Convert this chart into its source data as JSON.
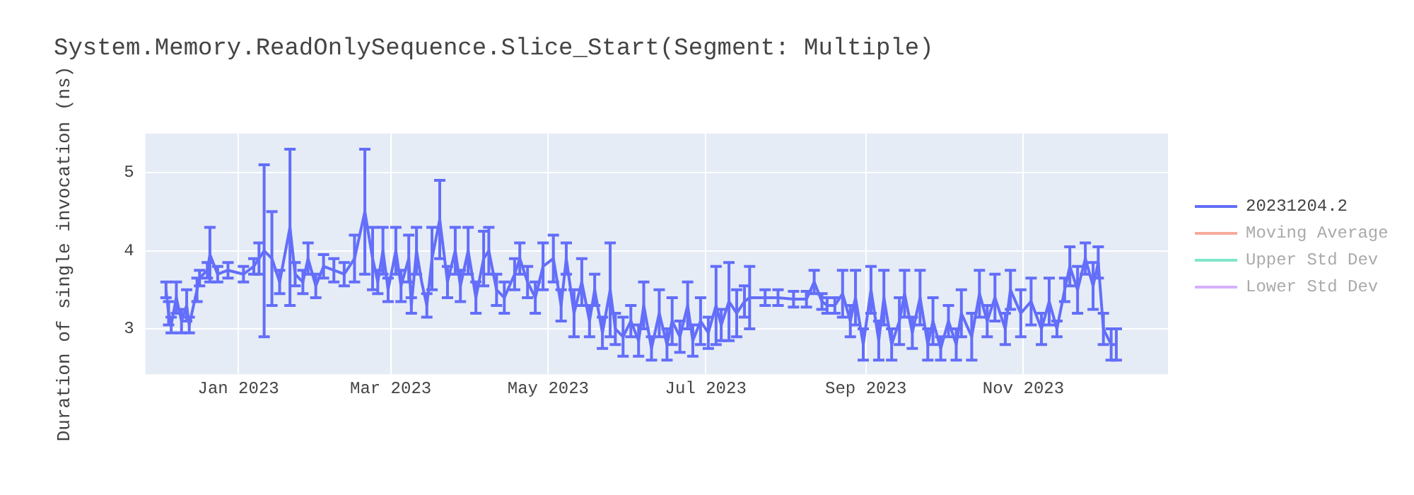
{
  "chart_data": {
    "type": "line",
    "title": "System.Memory.ReadOnlySequence.Slice_Start(Segment: Multiple)",
    "ylabel": "Duration of single invocation (ns)",
    "xlim": [
      "2022-11-26",
      "2023-12-27"
    ],
    "xticks": [
      {
        "value": "2023-01-01",
        "label": "Jan 2023"
      },
      {
        "value": "2023-03-01",
        "label": "Mar 2023"
      },
      {
        "value": "2023-05-01",
        "label": "May 2023"
      },
      {
        "value": "2023-07-01",
        "label": "Jul 2023"
      },
      {
        "value": "2023-09-01",
        "label": "Sep 2023"
      },
      {
        "value": "2023-11-01",
        "label": "Nov 2023"
      }
    ],
    "ylim": [
      2.42,
      5.5
    ],
    "yticks": [
      3,
      4,
      5
    ],
    "grid": true,
    "legend": "top right",
    "marker": "none",
    "line_style": "solid",
    "series": [
      {
        "name": "20231204.2",
        "color": "#636efa",
        "x": [
          "2022-12-04",
          "2022-12-05",
          "2022-12-06",
          "2022-12-08",
          "2022-12-10",
          "2022-12-12",
          "2022-12-13",
          "2022-12-16",
          "2022-12-17",
          "2022-12-20",
          "2022-12-21",
          "2022-12-24",
          "2022-12-28",
          "2023-01-03",
          "2023-01-07",
          "2023-01-09",
          "2023-01-11",
          "2023-01-14",
          "2023-01-17",
          "2023-01-21",
          "2023-01-23",
          "2023-01-26",
          "2023-01-28",
          "2023-01-31",
          "2023-02-03",
          "2023-02-07",
          "2023-02-11",
          "2023-02-15",
          "2023-02-19",
          "2023-02-22",
          "2023-02-24",
          "2023-02-26",
          "2023-02-28",
          "2023-03-03",
          "2023-03-05",
          "2023-03-08",
          "2023-03-09",
          "2023-03-11",
          "2023-03-13",
          "2023-03-15",
          "2023-03-17",
          "2023-03-20",
          "2023-03-23",
          "2023-03-26",
          "2023-03-28",
          "2023-03-31",
          "2023-04-03",
          "2023-04-06",
          "2023-04-08",
          "2023-04-11",
          "2023-04-14",
          "2023-04-18",
          "2023-04-20",
          "2023-04-23",
          "2023-04-26",
          "2023-04-29",
          "2023-05-03",
          "2023-05-06",
          "2023-05-08",
          "2023-05-11",
          "2023-05-14",
          "2023-05-17",
          "2023-05-19",
          "2023-05-22",
          "2023-05-25",
          "2023-05-27",
          "2023-05-30",
          "2023-06-02",
          "2023-06-05",
          "2023-06-07",
          "2023-06-10",
          "2023-06-13",
          "2023-06-16",
          "2023-06-18",
          "2023-06-21",
          "2023-06-24",
          "2023-06-26",
          "2023-06-29",
          "2023-07-02",
          "2023-07-05",
          "2023-07-07",
          "2023-07-10",
          "2023-07-13",
          "2023-07-16",
          "2023-07-18",
          "2023-07-24",
          "2023-07-29",
          "2023-08-04",
          "2023-08-09",
          "2023-08-12",
          "2023-08-15",
          "2023-08-17",
          "2023-08-20",
          "2023-08-23",
          "2023-08-26",
          "2023-08-28",
          "2023-08-31",
          "2023-09-03",
          "2023-09-06",
          "2023-09-08",
          "2023-09-11",
          "2023-09-14",
          "2023-09-16",
          "2023-09-19",
          "2023-09-22",
          "2023-09-25",
          "2023-09-27",
          "2023-09-30",
          "2023-10-03",
          "2023-10-06",
          "2023-10-08",
          "2023-10-12",
          "2023-10-15",
          "2023-10-18",
          "2023-10-21",
          "2023-10-25",
          "2023-10-27",
          "2023-10-31",
          "2023-11-04",
          "2023-11-08",
          "2023-11-11",
          "2023-11-14",
          "2023-11-17",
          "2023-11-19",
          "2023-11-22",
          "2023-11-25",
          "2023-11-28",
          "2023-11-30",
          "2023-12-02",
          "2023-12-05",
          "2023-12-07"
        ],
        "values": [
          3.5,
          3.2,
          3.05,
          3.4,
          3.1,
          3.3,
          3.05,
          3.5,
          3.65,
          3.75,
          3.95,
          3.7,
          3.75,
          3.7,
          3.8,
          3.9,
          4.0,
          3.9,
          3.6,
          4.3,
          3.7,
          3.6,
          3.9,
          3.55,
          3.8,
          3.75,
          3.7,
          3.9,
          4.5,
          3.9,
          3.6,
          4.0,
          3.5,
          4.0,
          3.55,
          3.9,
          3.3,
          4.0,
          3.6,
          3.3,
          3.9,
          4.4,
          3.6,
          4.0,
          3.55,
          4.0,
          3.4,
          3.9,
          4.0,
          3.5,
          3.4,
          3.7,
          3.9,
          3.6,
          3.4,
          3.8,
          3.9,
          3.3,
          3.9,
          3.2,
          3.6,
          3.1,
          3.5,
          2.95,
          3.5,
          3.0,
          2.9,
          3.1,
          2.85,
          3.3,
          2.75,
          3.2,
          2.8,
          3.1,
          2.9,
          3.3,
          2.85,
          3.1,
          2.95,
          3.3,
          3.05,
          3.35,
          3.2,
          3.35,
          3.4,
          3.4,
          3.4,
          3.38,
          3.38,
          3.6,
          3.35,
          3.3,
          3.3,
          3.45,
          3.1,
          3.4,
          2.8,
          3.5,
          2.85,
          3.4,
          2.8,
          3.1,
          3.45,
          2.95,
          3.4,
          2.8,
          3.1,
          2.75,
          3.1,
          2.8,
          3.2,
          2.9,
          3.45,
          3.1,
          3.4,
          3.0,
          3.5,
          3.2,
          3.35,
          3.0,
          3.35,
          3.0,
          3.5,
          3.8,
          3.5,
          3.9,
          3.55,
          3.85,
          3.0,
          2.8,
          2.8
        ],
        "errors": [
          0.1,
          0.15,
          0.1,
          0.2,
          0.15,
          0.2,
          0.1,
          0.15,
          0.1,
          0.1,
          0.35,
          0.1,
          0.1,
          0.1,
          0.1,
          0.2,
          1.1,
          0.6,
          0.15,
          1.0,
          0.15,
          0.15,
          0.2,
          0.15,
          0.15,
          0.15,
          0.15,
          0.3,
          0.8,
          0.4,
          0.15,
          0.3,
          0.15,
          0.3,
          0.2,
          0.3,
          0.1,
          0.3,
          null,
          0.15,
          0.4,
          0.5,
          0.2,
          0.3,
          0.2,
          0.3,
          0.2,
          0.35,
          0.3,
          0.2,
          0.2,
          0.2,
          0.2,
          0.2,
          0.2,
          0.3,
          0.3,
          0.2,
          0.2,
          0.3,
          0.3,
          0.2,
          0.2,
          0.2,
          0.6,
          0.2,
          0.25,
          0.2,
          0.2,
          0.3,
          0.15,
          0.3,
          0.2,
          0.3,
          0.2,
          0.3,
          0.2,
          0.3,
          0.2,
          0.5,
          0.2,
          0.5,
          0.3,
          0.2,
          0.4,
          0.1,
          0.1,
          0.1,
          0.1,
          0.15,
          0.1,
          0.1,
          0.1,
          0.3,
          0.2,
          0.35,
          0.2,
          0.3,
          0.25,
          0.35,
          0.2,
          0.3,
          0.3,
          0.2,
          0.35,
          0.2,
          0.3,
          0.15,
          0.2,
          0.2,
          0.3,
          0.3,
          0.3,
          0.2,
          0.3,
          0.2,
          0.25,
          0.3,
          0.3,
          0.2,
          0.3,
          0.1,
          0.15,
          0.25,
          0.3,
          0.2,
          0.3,
          0.2,
          0.2,
          0.2,
          0.2
        ]
      },
      {
        "name": "Moving Average",
        "color": "#f7aa9d"
      },
      {
        "name": "Upper Std Dev",
        "color": "#80e5cb"
      },
      {
        "name": "Lower Std Dev",
        "color": "#d5b1fc"
      }
    ]
  }
}
